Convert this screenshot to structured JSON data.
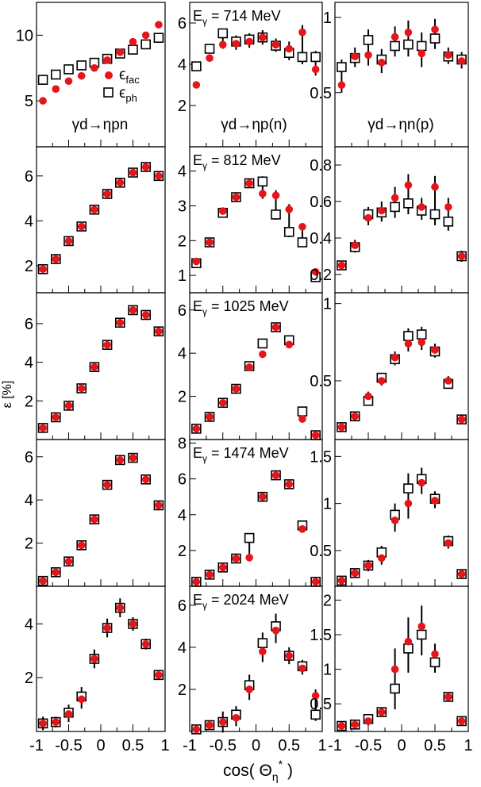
{
  "figure": {
    "ylabel": "ε [%]",
    "xlabel": "cos( Θη* )",
    "xlabel_main": "cos( Θ",
    "xlabel_sub": "η",
    "xlabel_sup": "*",
    "xlabel_close": " )",
    "x_tick_labels": [
      "-1",
      "-0.5",
      "0",
      "0.5",
      "1"
    ],
    "column_titles": [
      "γd→ηpn",
      "γd→ηp(n)",
      "γd→ηn(p)"
    ],
    "legend": {
      "fac_main": "ϵ",
      "fac_sub": "fac",
      "ph_main": "ϵ",
      "ph_sub": "ph"
    },
    "colors": {
      "fac": "#e8141c",
      "ph": "#000000",
      "frame": "#000000"
    }
  },
  "chart_data": [
    {
      "type": "scatter",
      "row": 0,
      "col": 0,
      "energy_label": "",
      "xlim": [
        -1,
        1
      ],
      "ylim": [
        1.5,
        12.5
      ],
      "y_ticks": [
        5,
        10
      ],
      "x": [
        -0.9,
        -0.7,
        -0.5,
        -0.3,
        -0.1,
        0.1,
        0.3,
        0.5,
        0.7,
        0.9
      ],
      "series": [
        {
          "name": "ϵfac",
          "values": [
            5.0,
            5.9,
            6.5,
            6.9,
            7.5,
            8.1,
            8.7,
            9.5,
            10.0,
            10.8
          ]
        },
        {
          "name": "ϵph",
          "values": [
            6.6,
            7.0,
            7.4,
            7.7,
            7.9,
            8.2,
            8.6,
            8.9,
            9.3,
            9.8
          ]
        }
      ],
      "err": [
        0,
        0,
        0,
        0,
        0,
        0,
        0,
        0,
        0,
        0
      ]
    },
    {
      "type": "scatter",
      "row": 0,
      "col": 1,
      "energy_label": "Eγ = 714 MeV",
      "xlim": [
        -1,
        1
      ],
      "ylim": [
        0,
        7
      ],
      "y_ticks": [
        2,
        4,
        6
      ],
      "x": [
        -0.9,
        -0.7,
        -0.5,
        -0.3,
        -0.1,
        0.1,
        0.3,
        0.5,
        0.7,
        0.9
      ],
      "series": [
        {
          "name": "ϵfac",
          "values": [
            3.0,
            4.3,
            4.95,
            5.0,
            5.1,
            5.3,
            4.95,
            4.75,
            5.55,
            3.75
          ]
        },
        {
          "name": "ϵph",
          "values": [
            3.9,
            4.75,
            5.5,
            5.1,
            5.2,
            5.3,
            4.9,
            4.55,
            4.35,
            4.35
          ]
        }
      ],
      "err": [
        0,
        0,
        0.2,
        0.3,
        0.3,
        0.35,
        0.3,
        0.35,
        0.35,
        0.3
      ]
    },
    {
      "type": "scatter",
      "row": 0,
      "col": 2,
      "energy_label": "",
      "xlim": [
        -1,
        1
      ],
      "ylim": [
        0.14,
        1.1
      ],
      "y_ticks": [
        0.5,
        1
      ],
      "x": [
        -0.9,
        -0.7,
        -0.5,
        -0.3,
        -0.1,
        0.1,
        0.3,
        0.5,
        0.7,
        0.9
      ],
      "series": [
        {
          "name": "ϵfac",
          "values": [
            0.55,
            0.74,
            0.75,
            0.7,
            0.87,
            0.9,
            0.76,
            0.92,
            0.75,
            0.71
          ]
        },
        {
          "name": "ϵph",
          "values": [
            0.67,
            0.73,
            0.85,
            0.72,
            0.81,
            0.82,
            0.81,
            0.86,
            0.74,
            0.72
          ]
        }
      ],
      "err": [
        0.05,
        0.06,
        0.07,
        0.07,
        0.07,
        0.08,
        0.09,
        0.07,
        0.05,
        0.05
      ]
    },
    {
      "type": "scatter",
      "row": 1,
      "col": 0,
      "energy_label": "",
      "xlim": [
        -1,
        1
      ],
      "ylim": [
        0.8,
        7.3
      ],
      "y_ticks": [
        2,
        4,
        6
      ],
      "x": [
        -0.9,
        -0.7,
        -0.5,
        -0.3,
        -0.1,
        0.1,
        0.3,
        0.5,
        0.7,
        0.9
      ],
      "series": [
        {
          "name": "ϵfac",
          "values": [
            1.85,
            2.3,
            3.1,
            3.75,
            4.5,
            5.2,
            5.7,
            6.15,
            6.4,
            6.0
          ]
        },
        {
          "name": "ϵph",
          "values": [
            1.85,
            2.3,
            3.1,
            3.75,
            4.5,
            5.2,
            5.7,
            6.15,
            6.4,
            6.0
          ]
        }
      ],
      "err": [
        0,
        0,
        0,
        0,
        0,
        0,
        0,
        0,
        0,
        0
      ]
    },
    {
      "type": "scatter",
      "row": 1,
      "col": 1,
      "energy_label": "Eγ = 812 MeV",
      "xlim": [
        -1,
        1
      ],
      "ylim": [
        0.5,
        4.7
      ],
      "y_ticks": [
        1,
        2,
        3,
        4
      ],
      "x": [
        -0.9,
        -0.7,
        -0.5,
        -0.3,
        -0.1,
        0.1,
        0.3,
        0.5,
        0.7,
        0.9
      ],
      "series": [
        {
          "name": "ϵfac",
          "values": [
            1.4,
            1.95,
            2.85,
            3.25,
            3.65,
            3.35,
            3.3,
            2.9,
            2.4,
            1.1
          ]
        },
        {
          "name": "ϵph",
          "values": [
            1.35,
            1.95,
            2.8,
            3.25,
            3.65,
            3.7,
            2.75,
            2.25,
            1.95,
            0.95
          ]
        }
      ],
      "err": [
        0,
        0,
        0.1,
        0.1,
        0.1,
        0.15,
        0.15,
        0.15,
        0.1,
        0.1
      ]
    },
    {
      "type": "scatter",
      "row": 1,
      "col": 2,
      "energy_label": "",
      "xlim": [
        -1,
        1
      ],
      "ylim": [
        0.1,
        0.9
      ],
      "y_ticks": [
        0.2,
        0.4,
        0.6,
        0.8
      ],
      "x": [
        -0.9,
        -0.7,
        -0.5,
        -0.3,
        -0.1,
        0.1,
        0.3,
        0.5,
        0.7,
        0.9
      ],
      "series": [
        {
          "name": "ϵfac",
          "values": [
            0.25,
            0.36,
            0.51,
            0.55,
            0.62,
            0.69,
            0.57,
            0.68,
            0.57,
            0.3
          ]
        },
        {
          "name": "ϵph",
          "values": [
            0.25,
            0.35,
            0.53,
            0.54,
            0.57,
            0.59,
            0.55,
            0.53,
            0.49,
            0.3
          ]
        }
      ],
      "err": [
        0.02,
        0.03,
        0.04,
        0.05,
        0.06,
        0.06,
        0.05,
        0.06,
        0.05,
        0.03
      ]
    },
    {
      "type": "scatter",
      "row": 2,
      "col": 0,
      "energy_label": "",
      "xlim": [
        -1,
        1
      ],
      "ylim": [
        0,
        7.6
      ],
      "y_ticks": [
        2,
        4,
        6
      ],
      "x": [
        -0.9,
        -0.7,
        -0.5,
        -0.3,
        -0.1,
        0.1,
        0.3,
        0.5,
        0.7,
        0.9
      ],
      "series": [
        {
          "name": "ϵfac",
          "values": [
            0.6,
            1.15,
            1.75,
            2.65,
            3.75,
            4.9,
            6.05,
            6.7,
            6.45,
            5.6
          ]
        },
        {
          "name": "ϵph",
          "values": [
            0.6,
            1.15,
            1.75,
            2.65,
            3.75,
            4.9,
            6.05,
            6.7,
            6.45,
            5.6
          ]
        }
      ],
      "err": [
        0,
        0,
        0,
        0,
        0,
        0,
        0,
        0,
        0,
        0
      ]
    },
    {
      "type": "scatter",
      "row": 2,
      "col": 1,
      "energy_label": "Eγ = 1025 MeV",
      "xlim": [
        -1,
        1
      ],
      "ylim": [
        0,
        6.8
      ],
      "y_ticks": [
        2,
        4,
        6
      ],
      "x": [
        -0.9,
        -0.7,
        -0.5,
        -0.3,
        -0.1,
        0.1,
        0.3,
        0.5,
        0.7,
        0.9
      ],
      "series": [
        {
          "name": "ϵfac",
          "values": [
            0.5,
            1.05,
            1.7,
            2.35,
            3.35,
            3.95,
            5.2,
            4.4,
            0.95,
            0.2
          ]
        },
        {
          "name": "ϵph",
          "values": [
            0.5,
            1.05,
            1.7,
            2.35,
            3.4,
            4.45,
            5.2,
            4.6,
            1.3,
            0.2
          ]
        }
      ],
      "err": [
        0,
        0,
        0,
        0,
        0,
        0,
        0,
        0,
        0,
        0
      ]
    },
    {
      "type": "scatter",
      "row": 2,
      "col": 2,
      "energy_label": "",
      "xlim": [
        -1,
        1
      ],
      "ylim": [
        0.12,
        1.07
      ],
      "y_ticks": [
        0.5,
        1
      ],
      "x": [
        -0.9,
        -0.7,
        -0.5,
        -0.3,
        -0.1,
        0.1,
        0.3,
        0.5,
        0.7,
        0.9
      ],
      "series": [
        {
          "name": "ϵfac",
          "values": [
            0.2,
            0.27,
            0.4,
            0.5,
            0.65,
            0.74,
            0.75,
            0.7,
            0.5,
            0.25
          ]
        },
        {
          "name": "ϵph",
          "values": [
            0.2,
            0.27,
            0.37,
            0.52,
            0.64,
            0.79,
            0.8,
            0.69,
            0.48,
            0.25
          ]
        }
      ],
      "err": [
        0.02,
        0.02,
        0.03,
        0.03,
        0.04,
        0.05,
        0.05,
        0.04,
        0.03,
        0.02
      ]
    },
    {
      "type": "scatter",
      "row": 3,
      "col": 0,
      "energy_label": "",
      "xlim": [
        -1,
        1
      ],
      "ylim": [
        0,
        6.8
      ],
      "y_ticks": [
        2,
        4,
        6
      ],
      "x": [
        -0.9,
        -0.7,
        -0.5,
        -0.3,
        -0.1,
        0.1,
        0.3,
        0.5,
        0.7,
        0.9
      ],
      "series": [
        {
          "name": "ϵfac",
          "values": [
            0.25,
            0.65,
            1.15,
            1.9,
            3.1,
            4.7,
            5.85,
            5.95,
            4.95,
            3.75
          ]
        },
        {
          "name": "ϵph",
          "values": [
            0.25,
            0.65,
            1.15,
            1.9,
            3.1,
            4.7,
            5.85,
            5.95,
            4.95,
            3.75
          ]
        }
      ],
      "err": [
        0,
        0,
        0,
        0,
        0.1,
        0.15,
        0.15,
        0.15,
        0.15,
        0.1
      ]
    },
    {
      "type": "scatter",
      "row": 3,
      "col": 1,
      "energy_label": "Eγ = 1474 MeV",
      "xlim": [
        -1,
        1
      ],
      "ylim": [
        0,
        8.2
      ],
      "y_ticks": [
        2,
        4,
        6,
        8
      ],
      "x": [
        -0.9,
        -0.7,
        -0.5,
        -0.3,
        -0.1,
        0.1,
        0.3,
        0.5,
        0.7,
        0.9
      ],
      "series": [
        {
          "name": "ϵfac",
          "values": [
            0.25,
            0.65,
            1.05,
            1.55,
            1.6,
            5.0,
            6.2,
            5.7,
            3.2,
            0.25
          ]
        },
        {
          "name": "ϵph",
          "values": [
            0.25,
            0.65,
            1.05,
            1.55,
            2.7,
            5.0,
            6.2,
            5.7,
            3.4,
            0.25
          ]
        }
      ],
      "err": [
        0,
        0,
        0,
        0.1,
        0.1,
        0.2,
        0.2,
        0.2,
        0.15,
        0.05
      ]
    },
    {
      "type": "scatter",
      "row": 3,
      "col": 2,
      "energy_label": "",
      "xlim": [
        -1,
        1
      ],
      "ylim": [
        0.12,
        1.68
      ],
      "y_ticks": [
        0.5,
        1,
        1.5
      ],
      "x": [
        -0.9,
        -0.7,
        -0.5,
        -0.3,
        -0.1,
        0.1,
        0.3,
        0.5,
        0.7,
        0.9
      ],
      "series": [
        {
          "name": "ϵfac",
          "values": [
            0.18,
            0.26,
            0.34,
            0.42,
            0.82,
            1.0,
            1.22,
            1.03,
            0.58,
            0.25
          ]
        },
        {
          "name": "ϵph",
          "values": [
            0.18,
            0.26,
            0.34,
            0.48,
            0.88,
            1.16,
            1.26,
            1.05,
            0.6,
            0.25
          ]
        }
      ],
      "err": [
        0.02,
        0.04,
        0.06,
        0.07,
        0.12,
        0.16,
        0.12,
        0.08,
        0.06,
        0.03
      ]
    },
    {
      "type": "scatter",
      "row": 4,
      "col": 0,
      "energy_label": "",
      "xlim": [
        -1,
        1
      ],
      "ylim": [
        0,
        5.4
      ],
      "y_ticks": [
        2,
        4
      ],
      "x": [
        -0.9,
        -0.7,
        -0.5,
        -0.3,
        -0.1,
        0.1,
        0.3,
        0.5,
        0.7,
        0.9
      ],
      "series": [
        {
          "name": "ϵfac",
          "values": [
            0.3,
            0.35,
            0.65,
            1.2,
            2.7,
            3.85,
            4.6,
            4.0,
            3.25,
            2.1
          ]
        },
        {
          "name": "ϵph",
          "values": [
            0.3,
            0.35,
            0.7,
            1.3,
            2.7,
            3.85,
            4.6,
            4.0,
            3.25,
            2.1
          ]
        }
      ],
      "err": [
        0.25,
        0.2,
        0.3,
        0.35,
        0.35,
        0.35,
        0.35,
        0.25,
        0.2,
        0.15
      ]
    },
    {
      "type": "scatter",
      "row": 4,
      "col": 1,
      "energy_label": "Eγ = 2024 MeV",
      "xlim": [
        -1,
        1
      ],
      "ylim": [
        0,
        6.9
      ],
      "y_ticks": [
        2,
        4,
        6
      ],
      "x": [
        -0.9,
        -0.7,
        -0.5,
        -0.3,
        -0.1,
        0.1,
        0.3,
        0.5,
        0.7,
        0.9
      ],
      "series": [
        {
          "name": "ϵfac",
          "values": [
            0.1,
            0.3,
            0.45,
            0.65,
            2.0,
            3.8,
            4.8,
            3.6,
            3.0,
            1.7
          ]
        },
        {
          "name": "ϵph",
          "values": [
            0.1,
            0.3,
            0.45,
            0.8,
            2.2,
            4.2,
            5.0,
            3.6,
            3.1,
            0.8
          ]
        }
      ],
      "err": [
        0.1,
        0.15,
        0.5,
        0.4,
        0.5,
        0.5,
        0.6,
        0.4,
        0.3,
        0.3
      ]
    },
    {
      "type": "scatter",
      "row": 4,
      "col": 2,
      "energy_label": "",
      "xlim": [
        -1,
        1
      ],
      "ylim": [
        0.1,
        2.2
      ],
      "y_ticks": [
        0.5,
        1,
        1.5,
        2
      ],
      "x": [
        -0.9,
        -0.7,
        -0.5,
        -0.3,
        -0.1,
        0.1,
        0.3,
        0.5,
        0.7,
        0.9
      ],
      "series": [
        {
          "name": "ϵfac",
          "values": [
            0.18,
            0.2,
            0.25,
            0.38,
            1.0,
            1.4,
            1.62,
            1.22,
            0.6,
            0.25
          ]
        },
        {
          "name": "ϵph",
          "values": [
            0.18,
            0.2,
            0.28,
            0.38,
            0.72,
            1.3,
            1.5,
            1.1,
            0.6,
            0.25
          ]
        }
      ],
      "err": [
        0.03,
        0.04,
        0.06,
        0.05,
        0.3,
        0.35,
        0.3,
        0.15,
        0.06,
        0.04
      ]
    }
  ]
}
